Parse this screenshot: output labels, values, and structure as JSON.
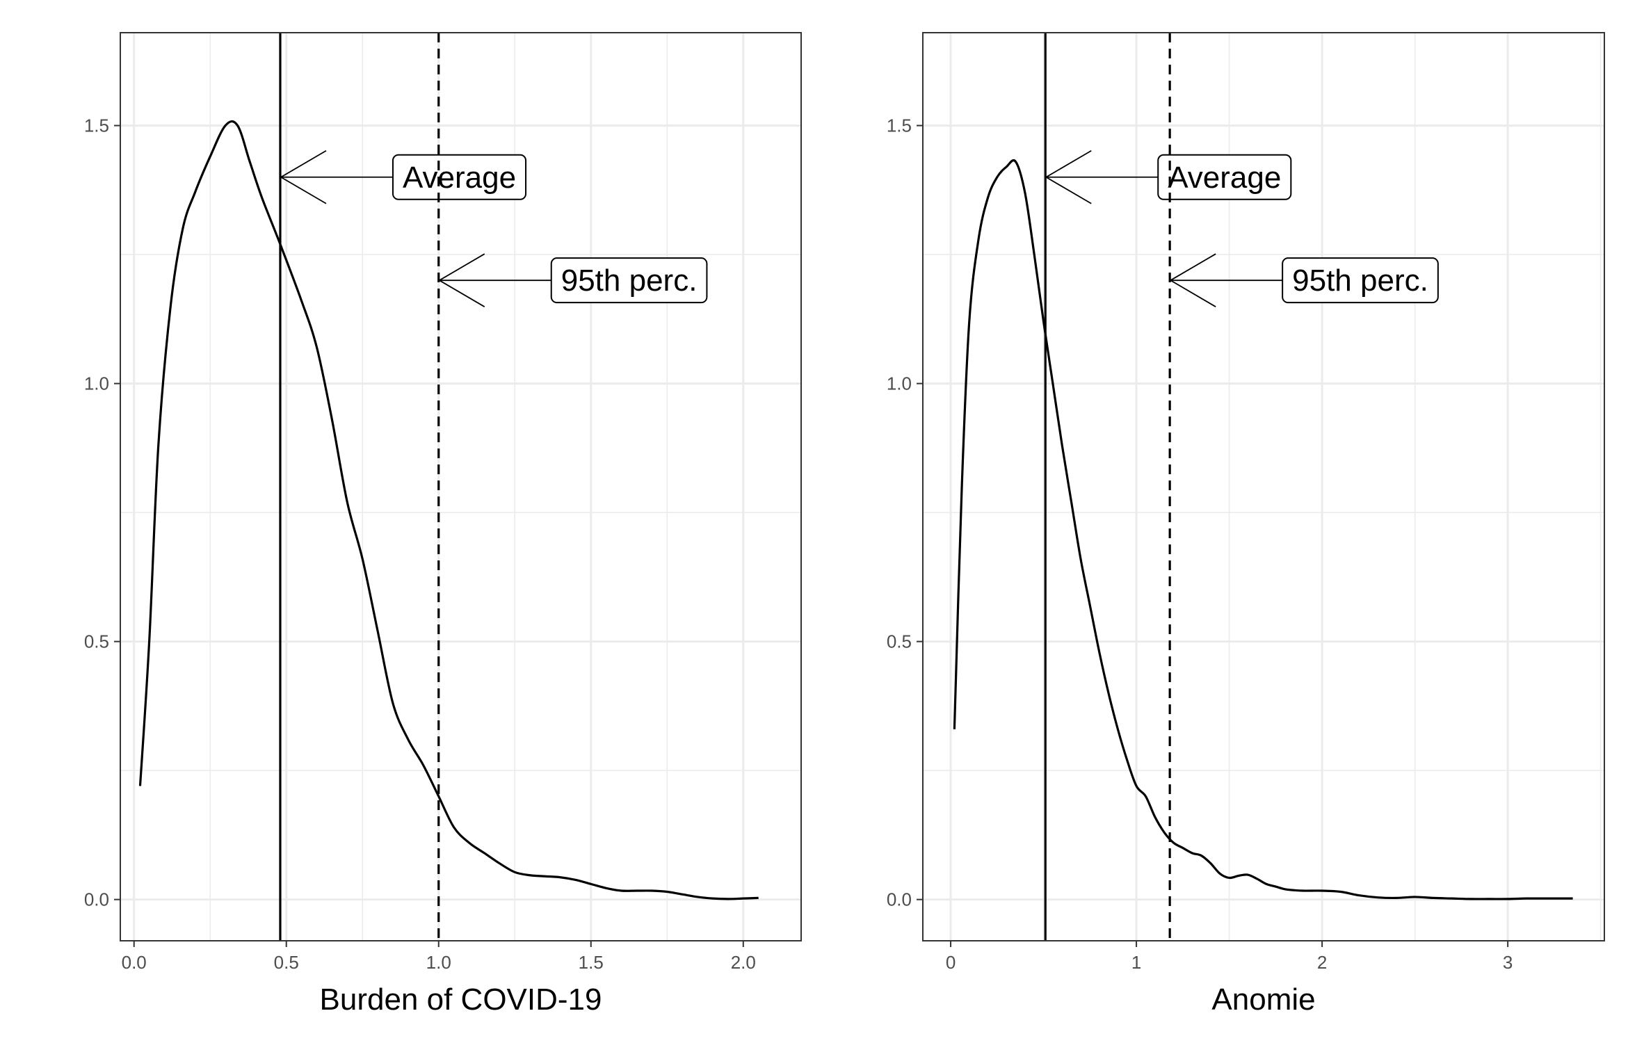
{
  "chart_data": [
    {
      "type": "line",
      "xlabel": "Burden of COVID-19",
      "ylabel": "",
      "xlim": [
        -0.045,
        2.19
      ],
      "ylim": [
        -0.08,
        1.68
      ],
      "x_ticks": [
        0.0,
        0.5,
        1.0,
        1.5,
        2.0
      ],
      "x_tick_labels": [
        "0.0",
        "0.5",
        "1.0",
        "1.5",
        "2.0"
      ],
      "y_ticks": [
        0.0,
        0.5,
        1.0,
        1.5
      ],
      "y_tick_labels": [
        "0.0",
        "0.5",
        "1.0",
        "1.5"
      ],
      "grid": true,
      "series": [
        {
          "x": [
            0.02,
            0.05,
            0.08,
            0.12,
            0.16,
            0.2,
            0.25,
            0.3,
            0.34,
            0.38,
            0.42,
            0.48,
            0.55,
            0.6,
            0.65,
            0.7,
            0.75,
            0.8,
            0.85,
            0.9,
            0.95,
            1.0,
            1.05,
            1.1,
            1.15,
            1.2,
            1.25,
            1.3,
            1.35,
            1.4,
            1.45,
            1.5,
            1.55,
            1.6,
            1.65,
            1.7,
            1.75,
            1.8,
            1.85,
            1.9,
            1.95,
            2.0,
            2.05
          ],
          "y": [
            0.22,
            0.5,
            0.88,
            1.15,
            1.3,
            1.37,
            1.44,
            1.5,
            1.5,
            1.43,
            1.36,
            1.27,
            1.16,
            1.07,
            0.93,
            0.77,
            0.66,
            0.52,
            0.38,
            0.31,
            0.26,
            0.2,
            0.14,
            0.11,
            0.09,
            0.07,
            0.053,
            0.047,
            0.045,
            0.043,
            0.038,
            0.03,
            0.022,
            0.017,
            0.017,
            0.017,
            0.015,
            0.01,
            0.005,
            0.002,
            0.001,
            0.002,
            0.003
          ]
        }
      ],
      "reference_lines": [
        {
          "x": 0.48,
          "style": "solid",
          "label": "Average",
          "arrow_y": 1.4
        },
        {
          "x": 1.0,
          "style": "dashed",
          "label": "95th perc.",
          "arrow_y": 1.2
        }
      ]
    },
    {
      "type": "line",
      "xlabel": "Anomie",
      "ylabel": "",
      "xlim": [
        -0.15,
        3.52
      ],
      "ylim": [
        -0.08,
        1.68
      ],
      "x_ticks": [
        0,
        1,
        2,
        3
      ],
      "x_tick_labels": [
        "0",
        "1",
        "2",
        "3"
      ],
      "y_ticks": [
        0.0,
        0.5,
        1.0,
        1.5
      ],
      "y_tick_labels": [
        "0.0",
        "0.5",
        "1.0",
        "1.5"
      ],
      "grid": true,
      "series": [
        {
          "x": [
            0.02,
            0.06,
            0.1,
            0.15,
            0.2,
            0.25,
            0.3,
            0.35,
            0.4,
            0.45,
            0.5,
            0.55,
            0.6,
            0.65,
            0.7,
            0.75,
            0.8,
            0.85,
            0.9,
            0.95,
            1.0,
            1.05,
            1.1,
            1.15,
            1.2,
            1.25,
            1.3,
            1.35,
            1.4,
            1.45,
            1.5,
            1.55,
            1.6,
            1.65,
            1.7,
            1.75,
            1.8,
            1.85,
            1.9,
            2.0,
            2.1,
            2.2,
            2.3,
            2.4,
            2.5,
            2.6,
            2.7,
            2.8,
            2.9,
            3.0,
            3.1,
            3.2,
            3.3,
            3.35
          ],
          "y": [
            0.33,
            0.8,
            1.12,
            1.28,
            1.36,
            1.4,
            1.42,
            1.43,
            1.37,
            1.25,
            1.12,
            1.0,
            0.88,
            0.77,
            0.66,
            0.57,
            0.48,
            0.4,
            0.33,
            0.27,
            0.22,
            0.2,
            0.16,
            0.13,
            0.11,
            0.1,
            0.09,
            0.085,
            0.07,
            0.05,
            0.042,
            0.046,
            0.048,
            0.04,
            0.03,
            0.025,
            0.02,
            0.018,
            0.017,
            0.017,
            0.015,
            0.008,
            0.004,
            0.003,
            0.005,
            0.003,
            0.002,
            0.001,
            0.001,
            0.001,
            0.002,
            0.002,
            0.002,
            0.002
          ]
        }
      ],
      "reference_lines": [
        {
          "x": 0.51,
          "style": "solid",
          "label": "Average",
          "arrow_y": 1.4
        },
        {
          "x": 1.18,
          "style": "dashed",
          "label": "95th perc.",
          "arrow_y": 1.2
        }
      ]
    }
  ]
}
